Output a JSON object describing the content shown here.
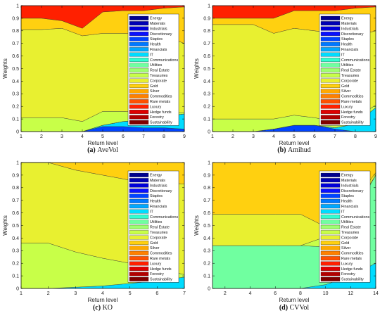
{
  "legend_labels": [
    "Energy",
    "Materials",
    "Industrials",
    "Discretionary",
    "Staples",
    "Health",
    "Financials",
    "IT",
    "Communications",
    "Utilities",
    "Real Estate",
    "Treasuries",
    "Corporate",
    "Gold",
    "Silver",
    "Commodities",
    "Rare metals",
    "Luxury",
    "Hedge funds",
    "Forestry",
    "Sustainability"
  ],
  "legend_colors": [
    "#00008f",
    "#0000b4",
    "#0000d8",
    "#0a10ff",
    "#0044ff",
    "#0078ff",
    "#00a8ff",
    "#00dcff",
    "#30ffd0",
    "#70ffa0",
    "#a0ff70",
    "#c8ff48",
    "#e8f030",
    "#ffd010",
    "#ffa800",
    "#ff8000",
    "#ff5000",
    "#ff2000",
    "#e00000",
    "#b00000",
    "#800000"
  ],
  "chart_data": [
    {
      "type": "area",
      "caption_letter": "(a)",
      "caption_name": "AveVol",
      "xlabel": "Return level",
      "ylabel": "Weights",
      "xlim": [
        1,
        9
      ],
      "ylim": [
        0,
        1
      ],
      "xticks": [
        1,
        2,
        3,
        4,
        5,
        6,
        7,
        8,
        9
      ],
      "yticks": [
        0,
        0.1,
        0.2,
        0.3,
        0.4,
        0.5,
        0.6,
        0.7,
        0.8,
        0.9,
        1
      ],
      "x": [
        1,
        2,
        3,
        4,
        5,
        6,
        7,
        8,
        9
      ],
      "series": [
        {
          "color_index": 4,
          "values": [
            0,
            0,
            0,
            0,
            0.04,
            0.04,
            0.03,
            0.03,
            0.02
          ]
        },
        {
          "color_index": 7,
          "values": [
            0,
            0,
            0,
            0,
            0.01,
            0.04,
            0.06,
            0.09,
            0.12
          ]
        },
        {
          "color_index": 9,
          "values": [
            0,
            0,
            0,
            0,
            0,
            0,
            0,
            0,
            0
          ]
        },
        {
          "color_index": 11,
          "values": [
            0.11,
            0.11,
            0.11,
            0.08,
            0.11,
            0.08,
            0.06,
            0.03,
            0.01
          ]
        },
        {
          "color_index": 12,
          "values": [
            0.7,
            0.7,
            0.71,
            0.68,
            0.62,
            0.62,
            0.62,
            0.61,
            0.55
          ]
        },
        {
          "color_index": 13,
          "values": [
            0.09,
            0.09,
            0.06,
            0.06,
            0.17,
            0.18,
            0.19,
            0.22,
            0.29
          ]
        },
        {
          "color_index": 17,
          "values": [
            0.1,
            0.1,
            0.12,
            0.18,
            0.05,
            0.04,
            0.04,
            0.02,
            0.01
          ]
        }
      ]
    },
    {
      "type": "area",
      "caption_letter": "(b)",
      "caption_name": "Amihud",
      "xlabel": "Return level",
      "ylabel": "Weights",
      "xlim": [
        1,
        9
      ],
      "ylim": [
        0,
        1
      ],
      "xticks": [
        1,
        2,
        3,
        4,
        5,
        6,
        7,
        8,
        9
      ],
      "yticks": [
        0,
        0.1,
        0.2,
        0.3,
        0.4,
        0.5,
        0.6,
        0.7,
        0.8,
        0.9,
        1
      ],
      "x": [
        1,
        2,
        3,
        4,
        5,
        6,
        7,
        8,
        9
      ],
      "series": [
        {
          "color_index": 4,
          "values": [
            0,
            0,
            0,
            0.02,
            0.05,
            0.05,
            0.02,
            0,
            0
          ]
        },
        {
          "color_index": 7,
          "values": [
            0,
            0,
            0,
            0,
            0,
            0,
            0.01,
            0.06,
            0.19
          ]
        },
        {
          "color_index": 9,
          "values": [
            0,
            0,
            0,
            0,
            0,
            0,
            0,
            0,
            0
          ]
        },
        {
          "color_index": 11,
          "values": [
            0.1,
            0.1,
            0.1,
            0.08,
            0.08,
            0.06,
            0.05,
            0.05,
            0.02
          ]
        },
        {
          "color_index": 12,
          "values": [
            0.75,
            0.75,
            0.75,
            0.68,
            0.69,
            0.69,
            0.7,
            0.65,
            0.59
          ]
        },
        {
          "color_index": 13,
          "values": [
            0.05,
            0.05,
            0.05,
            0.12,
            0.14,
            0.16,
            0.18,
            0.22,
            0.19
          ]
        },
        {
          "color_index": 17,
          "values": [
            0.1,
            0.1,
            0.1,
            0.1,
            0.04,
            0.04,
            0.04,
            0.02,
            0.01
          ]
        }
      ]
    },
    {
      "type": "area",
      "caption_letter": "(c)",
      "caption_name": "KO",
      "xlabel": "Return level",
      "ylabel": "Weights",
      "xlim": [
        1,
        7
      ],
      "ylim": [
        0,
        1
      ],
      "xticks": [
        1,
        2,
        3,
        4,
        5,
        6,
        7
      ],
      "yticks": [
        0,
        0.1,
        0.2,
        0.3,
        0.4,
        0.5,
        0.6,
        0.7,
        0.8,
        0.9,
        1
      ],
      "x": [
        1,
        2,
        3,
        4,
        5,
        6,
        7
      ],
      "series": [
        {
          "color_index": 7,
          "values": [
            0,
            0,
            0.01,
            0.02,
            0.04,
            0.06,
            0.09
          ]
        },
        {
          "color_index": 11,
          "values": [
            0.36,
            0.36,
            0.28,
            0.22,
            0.16,
            0.1,
            0.02
          ]
        },
        {
          "color_index": 12,
          "values": [
            0.64,
            0.64,
            0.65,
            0.66,
            0.66,
            0.68,
            0.72
          ]
        },
        {
          "color_index": 13,
          "values": [
            0,
            0,
            0.06,
            0.1,
            0.14,
            0.16,
            0.17
          ]
        }
      ]
    },
    {
      "type": "area",
      "caption_letter": "(d)",
      "caption_name": "CVVol",
      "xlabel": "Return level",
      "ylabel": "Weights",
      "xlim": [
        1,
        14
      ],
      "ylim": [
        0,
        1
      ],
      "xticks": [
        2,
        4,
        6,
        8,
        10,
        12,
        14
      ],
      "yticks": [
        0,
        0.1,
        0.2,
        0.3,
        0.4,
        0.5,
        0.6,
        0.7,
        0.8,
        0.9,
        1
      ],
      "x": [
        1,
        2,
        4,
        6,
        8,
        10,
        12,
        14
      ],
      "series": [
        {
          "color_index": 7,
          "values": [
            0,
            0,
            0,
            0,
            0,
            0.03,
            0.1,
            0.2
          ]
        },
        {
          "color_index": 9,
          "values": [
            0.34,
            0.34,
            0.34,
            0.34,
            0.34,
            0.3,
            0.45,
            0.7
          ]
        },
        {
          "color_index": 11,
          "values": [
            0,
            0,
            0,
            0,
            0,
            0.08,
            0.04,
            0
          ]
        },
        {
          "color_index": 12,
          "values": [
            0.25,
            0.25,
            0.25,
            0.25,
            0.25,
            0.08,
            0.06,
            0.02
          ]
        },
        {
          "color_index": 13,
          "values": [
            0.41,
            0.41,
            0.41,
            0.41,
            0.41,
            0.51,
            0.35,
            0.08
          ]
        }
      ]
    }
  ]
}
